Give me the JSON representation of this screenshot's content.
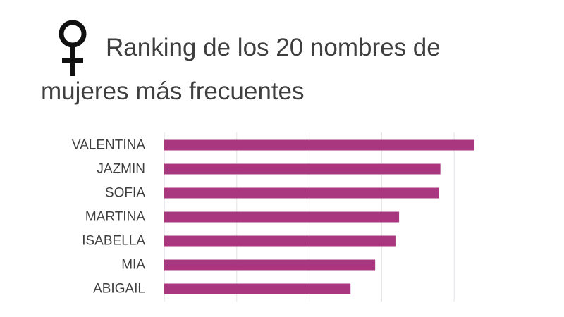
{
  "title": {
    "line1": "Ranking de los 20 nombres de",
    "line2": "mujeres más frecuentes",
    "icon": "female-symbol-icon"
  },
  "colors": {
    "bar": "#a8377f",
    "grid": "#e3e3e9",
    "text": "#3f3f3f"
  },
  "chart_data": {
    "type": "bar",
    "orientation": "horizontal",
    "title": "Ranking de los 20 nombres de mujeres más frecuentes",
    "xlabel": "",
    "ylabel": "",
    "categories": [
      "VALENTINA",
      "JAZMIN",
      "SOFIA",
      "MARTINA",
      "ISABELLA",
      "MIA",
      "ABIGAIL"
    ],
    "values": [
      4.28,
      3.81,
      3.79,
      3.24,
      3.19,
      2.91,
      2.57
    ],
    "xlim": [
      0,
      5
    ],
    "grid": true,
    "legend": "none"
  }
}
